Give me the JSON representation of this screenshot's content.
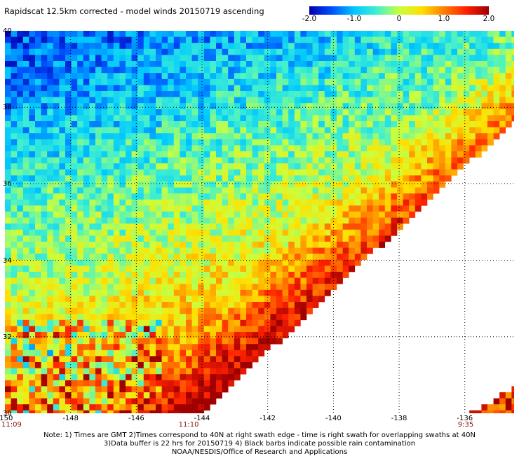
{
  "title": "Rapidscat 12.5km corrected - model winds 20150719 ascending",
  "colorbar": {
    "ticks": [
      "-2.0",
      "-1.0",
      "0",
      "1.0",
      "2.0"
    ],
    "tick_values": [
      -2.0,
      -1.0,
      0.0,
      1.0,
      2.0
    ],
    "range": [
      -2.0,
      2.0
    ],
    "colors": [
      "#0000b0",
      "#0050ff",
      "#00c8ff",
      "#40f0d0",
      "#c8ff40",
      "#ffe000",
      "#ff8000",
      "#ff2000",
      "#a00000"
    ]
  },
  "map": {
    "lat_range": [
      30,
      40
    ],
    "lon_range": [
      -150,
      -134.5
    ],
    "lat_labels": [
      "30",
      "32",
      "34",
      "36",
      "38",
      "40"
    ],
    "lat_values": [
      30,
      32,
      34,
      36,
      38,
      40
    ],
    "lon_labels": [
      "-150",
      "-148",
      "-146",
      "-144",
      "-142",
      "-140",
      "-138",
      "-136"
    ],
    "lon_values": [
      -150,
      -148,
      -146,
      -144,
      -142,
      -140,
      -138,
      -136
    ],
    "gridlines": "dotted",
    "swath_times": [
      {
        "label": "11:09",
        "lon": -150
      },
      {
        "label": "11:10",
        "lon": -144.5
      },
      {
        "label": "9:35",
        "lon": -136
      }
    ]
  },
  "notes": [
    "Note: 1) Times are GMT 2)Times correspond to 40N at right swath edge - time is right swath for overlapping swaths at 40N",
    "3)Data buffer is 22 hrs for 20150719 4) Black barbs indicate possible rain contamination",
    "NOAA/NESDIS/Office of Research and Applications"
  ]
}
